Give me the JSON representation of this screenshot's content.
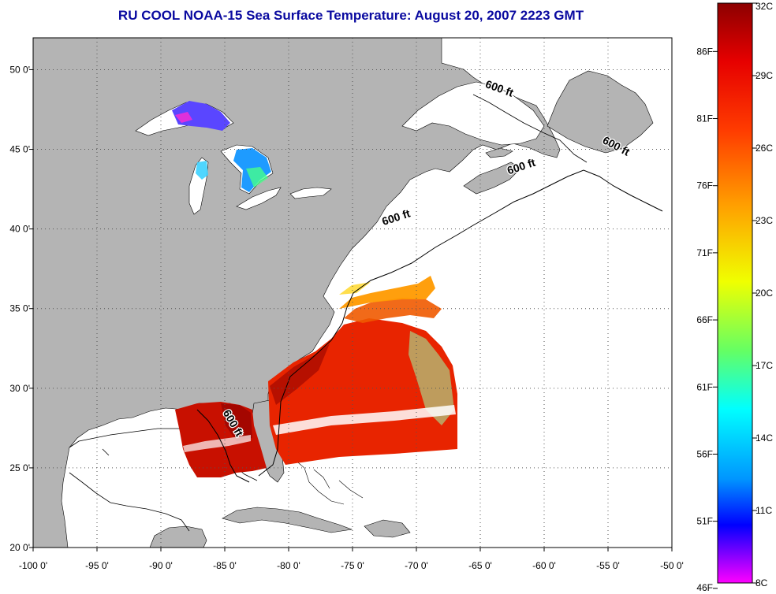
{
  "title": "RU COOL  NOAA-15  Sea Surface Temperature:  August 20, 2007 2223 GMT",
  "map": {
    "lon_range": [
      -100,
      -50
    ],
    "lat_range": [
      20,
      52
    ],
    "lon_labels": [
      "-100 0'",
      "-95 0'",
      "-90 0'",
      "-85 0'",
      "-80 0'",
      "-75 0'",
      "-70 0'",
      "-65 0'",
      "-60 0'",
      "-55 0'",
      "-50 0'"
    ],
    "lat_labels": [
      "20 0'",
      "25 0'",
      "30 0'",
      "35 0'",
      "40 0'",
      "45 0'",
      "50 0'"
    ],
    "land_color": "#b4b4b4",
    "ocean_color": "#ffffff",
    "isobath_labels": [
      {
        "text": "600 ft",
        "lon": -63.6,
        "lat": 48.6
      },
      {
        "text": "600 ft",
        "lon": -54.5,
        "lat": 45.0
      },
      {
        "text": "600 ft",
        "lon": -61.7,
        "lat": 43.7
      },
      {
        "text": "600 ft",
        "lon": -71.5,
        "lat": 40.5
      },
      {
        "text": "600 ft",
        "lon": -84.6,
        "lat": 27.7
      }
    ]
  },
  "colorbar": {
    "celsius_labels": [
      "32C",
      "29C",
      "26C",
      "23C",
      "20C",
      "17C",
      "14C",
      "11C",
      "8C"
    ],
    "fahrenheit_labels": [
      "86F",
      "81F",
      "76F",
      "71F",
      "66F",
      "61F",
      "56F",
      "51F",
      "46F"
    ],
    "celsius_values": [
      32,
      29,
      26,
      23,
      20,
      17,
      14,
      11,
      8
    ],
    "fahrenheit_values": [
      86,
      81,
      76,
      71,
      66,
      61,
      56,
      51,
      46
    ],
    "range_c": [
      8,
      32
    ],
    "colors": [
      "#ff00ff",
      "#5500ff",
      "#0000ff",
      "#00c8ff",
      "#00ffc8",
      "#c8ff00",
      "#ffd200",
      "#ff6400",
      "#ff0000",
      "#8c0000"
    ]
  }
}
